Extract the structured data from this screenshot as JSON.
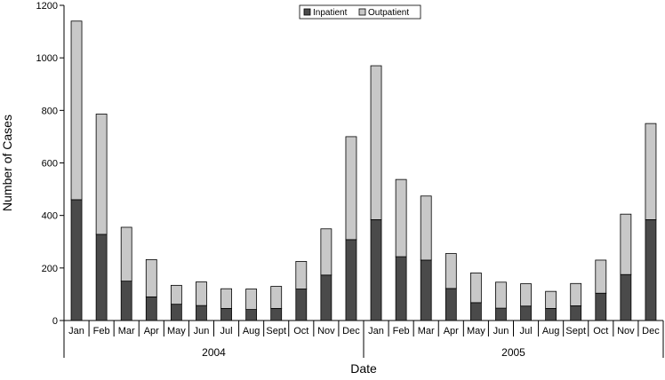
{
  "chart_data": {
    "type": "bar",
    "stacked": true,
    "xlabel": "Date",
    "ylabel": "Number of Cases",
    "ylim": [
      0,
      1200
    ],
    "yticks": [
      0,
      200,
      400,
      600,
      800,
      1000,
      1200
    ],
    "grid": false,
    "legend_position": "top-center",
    "years": [
      "2004",
      "2005"
    ],
    "categories": [
      "Jan",
      "Feb",
      "Mar",
      "Apr",
      "May",
      "Jun",
      "Jul",
      "Aug",
      "Sept",
      "Oct",
      "Nov",
      "Dec",
      "Jan",
      "Feb",
      "Mar",
      "Apr",
      "May",
      "Jun",
      "Jul",
      "Aug",
      "Sept",
      "Oct",
      "Nov",
      "Dec"
    ],
    "series": [
      {
        "name": "Inpatient",
        "color": "#4a4a4a",
        "values": [
          460,
          328,
          150,
          90,
          62,
          57,
          46,
          42,
          46,
          120,
          173,
          308,
          384,
          243,
          230,
          122,
          68,
          47,
          55,
          46,
          56,
          104,
          175,
          384
        ]
      },
      {
        "name": "Outpatient",
        "color": "#c8c8c8",
        "values": [
          680,
          458,
          205,
          142,
          72,
          90,
          75,
          78,
          84,
          105,
          176,
          392,
          586,
          294,
          244,
          133,
          113,
          99,
          85,
          65,
          85,
          126,
          230,
          366
        ]
      }
    ]
  }
}
